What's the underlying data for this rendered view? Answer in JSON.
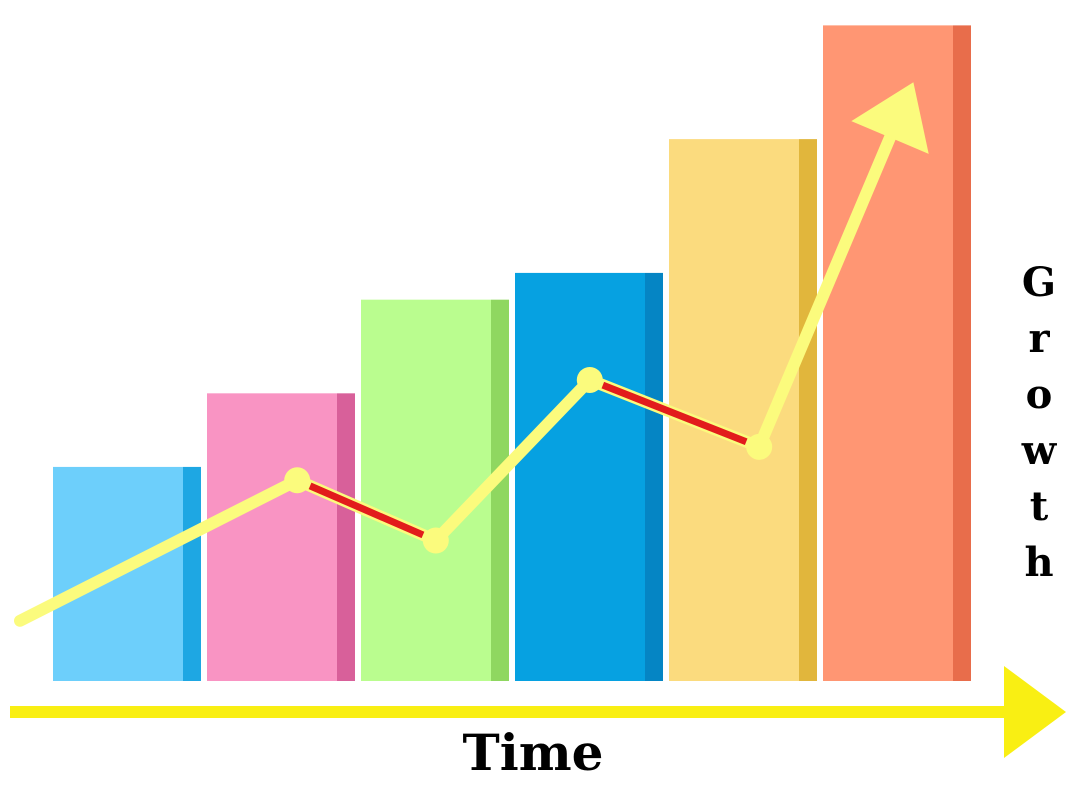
{
  "chart_data": {
    "type": "bar",
    "xlabel": "Time",
    "ylabel": "Growth",
    "ylim": [
      0,
      100
    ],
    "categories": [
      "",
      "",
      "",
      "",
      "",
      ""
    ],
    "values": [
      32,
      43,
      57,
      61,
      81,
      98
    ],
    "colors": {
      "bars": [
        "#6dcffb",
        "#f994c3",
        "#bafd8f",
        "#06a1e1",
        "#fbdb7e",
        "#ff9673"
      ],
      "bar_shades": [
        "#1ea7e3",
        "#d8609a",
        "#8fd760",
        "#0585c4",
        "#e1b63c",
        "#e86d4b"
      ],
      "trend": "#fbfb7d",
      "trend_decline": "#e21c1c",
      "axis_arrow": "#f9ef13"
    },
    "trend_line": [
      {
        "x": 0.0,
        "y": 9
      },
      {
        "x": 1.8,
        "y": 30
      },
      {
        "x": 2.7,
        "y": 21
      },
      {
        "x": 3.7,
        "y": 45
      },
      {
        "x": 4.8,
        "y": 35
      },
      {
        "x": 5.7,
        "y": 84
      }
    ]
  }
}
